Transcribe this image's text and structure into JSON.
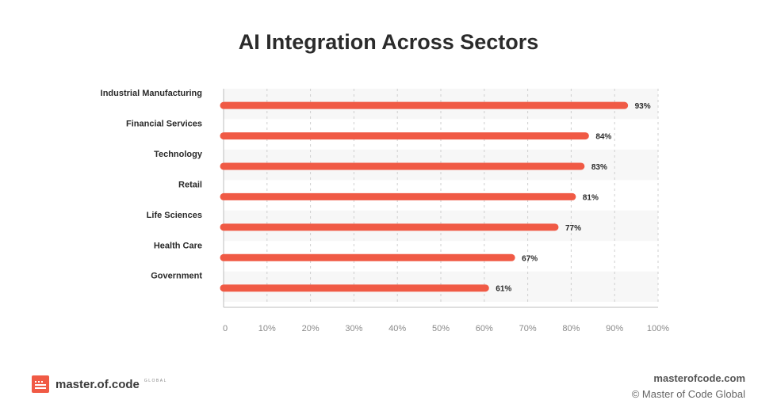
{
  "chart_data": {
    "type": "bar",
    "orientation": "horizontal",
    "title": "AI Integration Across Sectors",
    "categories": [
      "Industrial Manufacturing",
      "Financial Services",
      "Technology",
      "Retail",
      "Life Sciences",
      "Health Care",
      "Government"
    ],
    "values": [
      93,
      84,
      83,
      81,
      77,
      67,
      61
    ],
    "value_labels": [
      "93%",
      "84%",
      "83%",
      "81%",
      "77%",
      "67%",
      "61%"
    ],
    "x_ticks": [
      "0",
      "10%",
      "20%",
      "30%",
      "40%",
      "50%",
      "60%",
      "70%",
      "80%",
      "90%",
      "100%"
    ],
    "xlim": [
      0,
      100
    ],
    "grid": "vertical dashed",
    "bar_color": "#f05a45"
  },
  "footer": {
    "logo_text": "master.of.code",
    "logo_subtext": "GLOBAL",
    "site": "masterofcode.com",
    "copyright": "© Master of Code Global"
  },
  "colors": {
    "accent": "#f05a45",
    "band": "#f7f7f7"
  }
}
